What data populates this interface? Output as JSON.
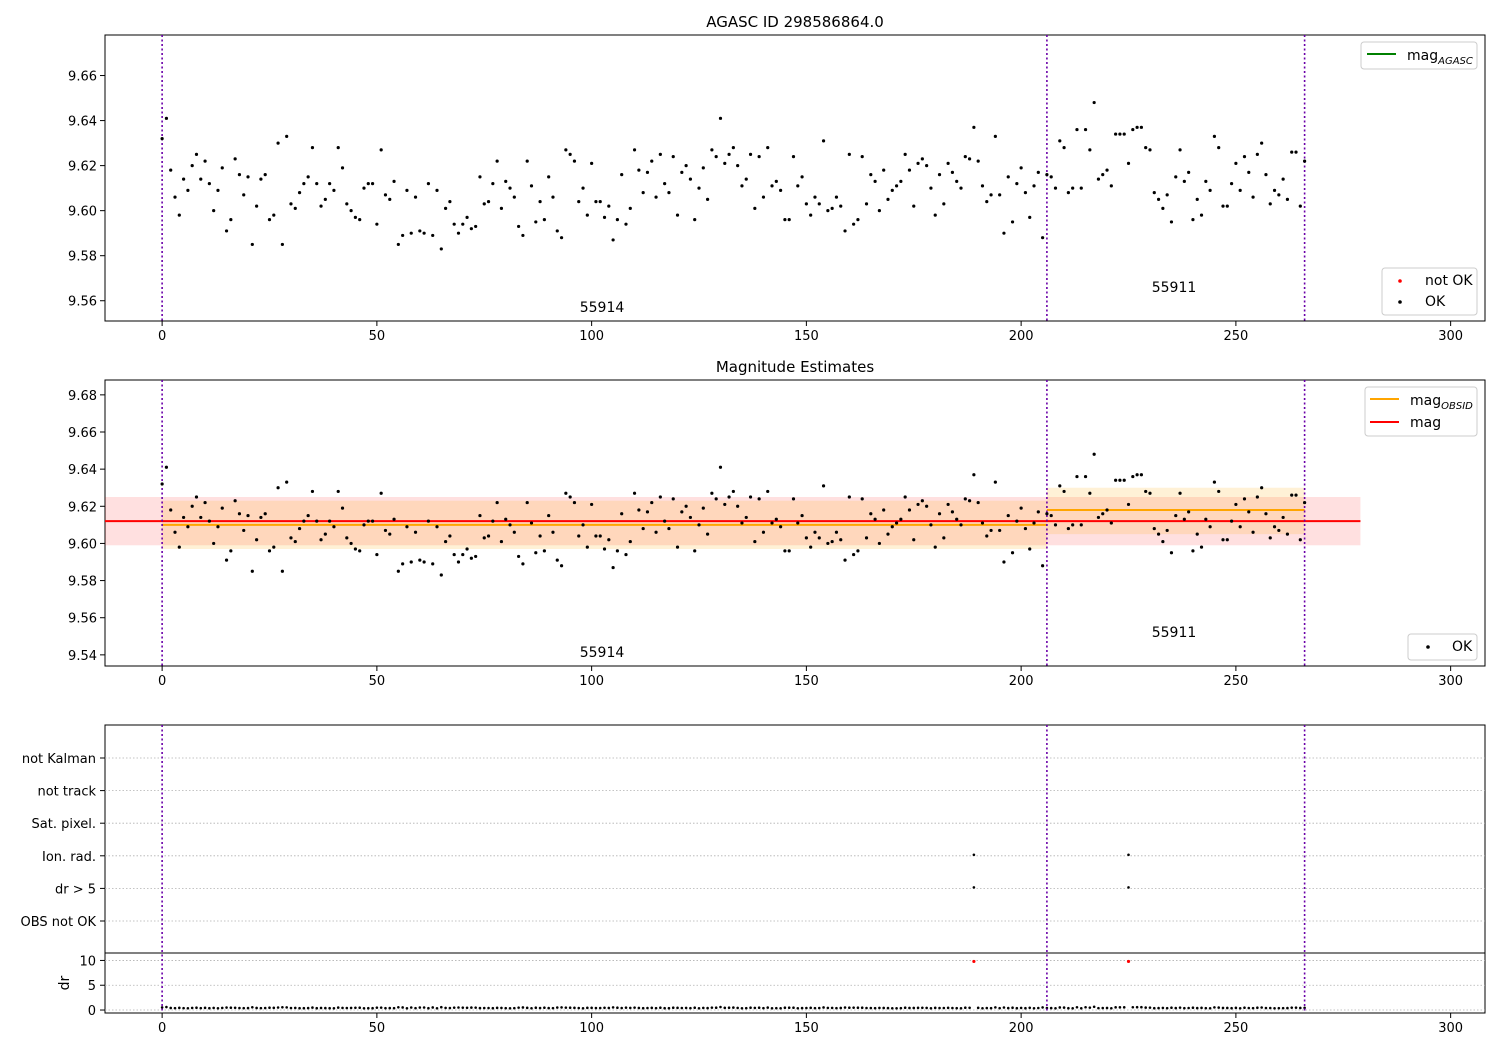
{
  "chart_data": [
    {
      "type": "scatter",
      "title": "AGASC ID 298586864.0",
      "xlim": [
        -13.3,
        308
      ],
      "ylim": [
        9.551,
        9.678
      ],
      "xticks": [
        0,
        50,
        100,
        150,
        200,
        250,
        300
      ],
      "yticks": [
        9.56,
        9.58,
        9.6,
        9.62,
        9.64,
        9.66
      ],
      "grid": false,
      "vlines": [
        0,
        206,
        266
      ],
      "obsid_labels": [
        {
          "text": "55914",
          "x": 102,
          "y": 9.555
        },
        {
          "text": "55911",
          "x": 236,
          "y": 9.564
        }
      ],
      "legend_top": {
        "position": "top-right",
        "entries": [
          {
            "label": "mag",
            "subscript": "AGASC",
            "color": "#008000"
          }
        ]
      },
      "legend_bottom": {
        "position": "bottom-right",
        "entries": [
          {
            "label": "not OK",
            "color": "#ff0000"
          },
          {
            "label": "OK",
            "color": "#000000"
          }
        ]
      },
      "series": [
        {
          "name": "OK",
          "color": "#000000"
        }
      ]
    },
    {
      "type": "scatter",
      "title": "Magnitude Estimates",
      "xlim": [
        -13.3,
        308
      ],
      "ylim": [
        9.534,
        9.688
      ],
      "xticks": [
        0,
        50,
        100,
        150,
        200,
        250,
        300
      ],
      "yticks": [
        9.54,
        9.56,
        9.58,
        9.6,
        9.62,
        9.64,
        9.66,
        9.68
      ],
      "grid": false,
      "vlines": [
        0,
        206,
        266
      ],
      "obsid_labels": [
        {
          "text": "55914",
          "x": 102,
          "y": 9.538
        },
        {
          "text": "55911",
          "x": 236,
          "y": 9.551
        }
      ],
      "bands": [
        {
          "name": "mag",
          "x0": -13.3,
          "x1": 279,
          "center": 9.612,
          "low": 9.599,
          "high": 9.625,
          "color": "#ff0000"
        },
        {
          "name": "mag_OBSID 55914",
          "x0": 0,
          "x1": 206,
          "center": 9.61,
          "low": 9.597,
          "high": 9.623,
          "color": "#ffa500"
        },
        {
          "name": "mag_OBSID 55911",
          "x0": 206,
          "x1": 266,
          "center": 9.618,
          "low": 9.605,
          "high": 9.63,
          "color": "#ffa500"
        }
      ],
      "legend_top": {
        "position": "top-right",
        "entries": [
          {
            "label": "mag",
            "subscript": "OBSID",
            "color": "#ffa500"
          },
          {
            "label": "mag",
            "subscript": "",
            "color": "#ff0000"
          }
        ]
      },
      "legend_bottom": {
        "position": "bottom-right",
        "entries": [
          {
            "label": "OK",
            "color": "#000000"
          }
        ]
      }
    },
    {
      "type": "scatter",
      "title": "",
      "xlim": [
        -13.3,
        308
      ],
      "xticks": [
        0,
        50,
        100,
        150,
        200,
        250,
        300
      ],
      "vlines": [
        0,
        206,
        266
      ],
      "flag_labels": [
        "not Kalman",
        "not track",
        "Sat. pixel.",
        "Ion. rad.",
        "dr > 5",
        "OBS not OK"
      ],
      "flag_points": [
        {
          "flag": "Ion. rad.",
          "x": [
            189,
            225
          ]
        },
        {
          "flag": "dr > 5",
          "x": [
            189,
            225
          ]
        }
      ],
      "dr": {
        "ylabel": "dr",
        "ylim": [
          -0.6,
          11.5
        ],
        "yticks": [
          0,
          5,
          10
        ],
        "outliers": {
          "x": [
            189,
            225
          ],
          "y": [
            9.8,
            9.8
          ],
          "color": "#ff0000"
        },
        "base_level": 0.35
      }
    }
  ],
  "magnitudes": [
    9.632,
    9.641,
    9.618,
    9.606,
    9.598,
    9.614,
    9.609,
    9.62,
    9.625,
    9.614,
    9.622,
    9.612,
    9.6,
    9.609,
    9.619,
    9.591,
    9.596,
    9.623,
    9.616,
    9.607,
    9.615,
    9.585,
    9.602,
    9.614,
    9.616,
    9.596,
    9.598,
    9.63,
    9.585,
    9.633,
    9.603,
    9.601,
    9.608,
    9.612,
    9.615,
    9.628,
    9.612,
    9.602,
    9.605,
    9.612,
    9.609,
    9.628,
    9.619,
    9.603,
    9.6,
    9.597,
    9.596,
    9.61,
    9.612,
    9.612,
    9.594,
    9.627,
    9.607,
    9.605,
    9.613,
    9.585,
    9.589,
    9.609,
    9.59,
    9.606,
    9.591,
    9.59,
    9.612,
    9.589,
    9.609,
    9.583,
    9.601,
    9.604,
    9.594,
    9.59,
    9.594,
    9.597,
    9.592,
    9.593,
    9.615,
    9.603,
    9.604,
    9.612,
    9.622,
    9.601,
    9.613,
    9.61,
    9.606,
    9.593,
    9.589,
    9.622,
    9.611,
    9.595,
    9.604,
    9.596,
    9.615,
    9.606,
    9.591,
    9.588,
    9.627,
    9.625,
    9.622,
    9.604,
    9.61,
    9.598,
    9.621,
    9.604,
    9.604,
    9.597,
    9.602,
    9.587,
    9.596,
    9.616,
    9.594,
    9.601,
    9.627,
    9.618,
    9.608,
    9.617,
    9.622,
    9.606,
    9.625,
    9.612,
    9.608,
    9.624,
    9.598,
    9.617,
    9.62,
    9.614,
    9.596,
    9.61,
    9.619,
    9.605,
    9.627,
    9.624,
    9.641,
    9.621,
    9.625,
    9.628,
    9.62,
    9.611,
    9.614,
    9.625,
    9.601,
    9.624,
    9.606,
    9.628,
    9.611,
    9.613,
    9.609,
    9.596,
    9.596,
    9.624,
    9.611,
    9.615,
    9.603,
    9.598,
    9.606,
    9.603,
    9.631,
    9.6,
    9.601,
    9.606,
    9.602,
    9.591,
    9.625,
    9.594,
    9.596,
    9.624,
    9.603,
    9.616,
    9.613,
    9.6,
    9.618,
    9.605,
    9.609,
    9.611,
    9.613,
    9.625,
    9.618,
    9.602,
    9.621,
    9.623,
    9.62,
    9.61,
    9.598,
    9.616,
    9.603,
    9.621,
    9.617,
    9.613,
    9.61,
    9.624,
    9.623,
    9.637,
    9.622,
    9.611,
    9.604,
    9.607,
    9.633,
    9.607,
    9.59,
    9.615,
    9.595,
    9.612,
    9.619,
    9.608,
    9.597,
    9.611,
    9.617,
    9.588,
    9.616,
    9.615,
    9.61,
    9.631,
    9.628,
    9.608,
    9.61,
    9.636,
    9.61,
    9.636,
    9.627,
    9.648,
    9.614,
    9.616,
    9.618,
    9.611,
    9.634,
    9.634,
    9.634,
    9.621,
    9.636,
    9.637,
    9.637,
    9.628,
    9.627,
    9.608,
    9.605,
    9.601,
    9.607,
    9.595,
    9.615,
    9.627,
    9.613,
    9.617,
    9.596,
    9.605,
    9.598,
    9.613,
    9.609,
    9.633,
    9.628,
    9.602,
    9.602,
    9.612,
    9.621,
    9.609,
    9.624,
    9.617,
    9.606,
    9.625,
    9.63,
    9.616,
    9.603,
    9.609,
    9.607,
    9.614,
    9.605,
    9.626,
    9.626,
    9.602,
    9.622
  ]
}
